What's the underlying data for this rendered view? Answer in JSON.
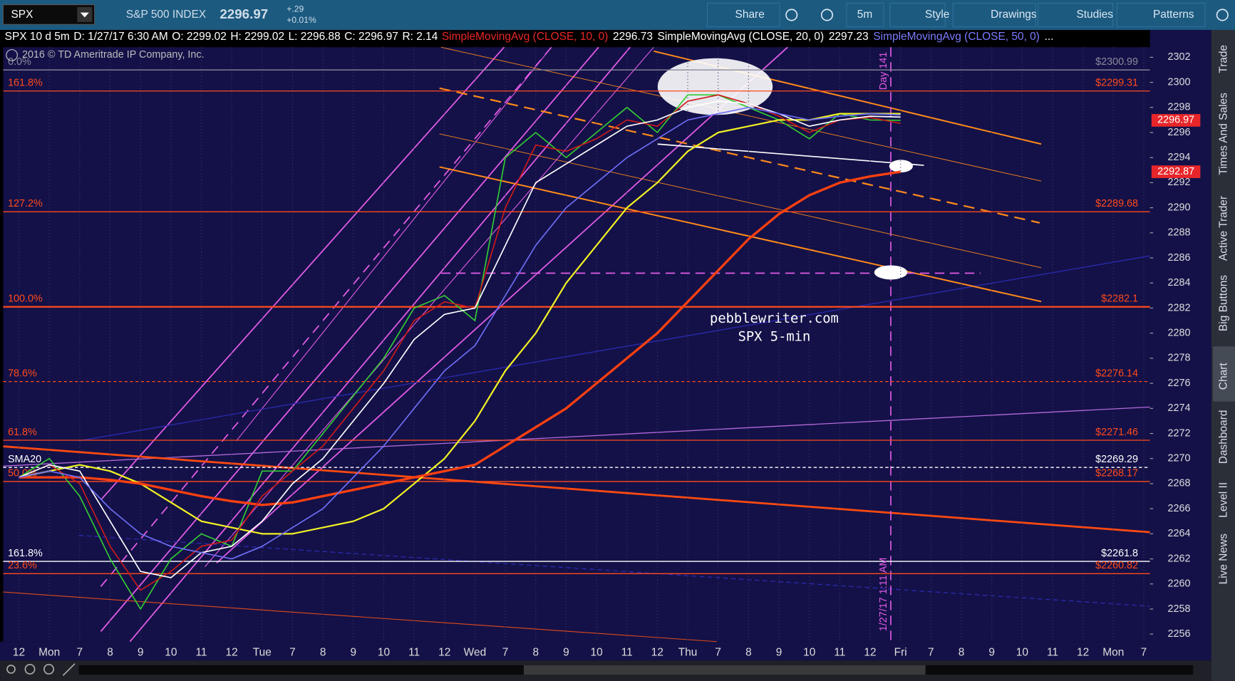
{
  "toolbar": {
    "symbol": "SPX",
    "name": "S&P 500 INDEX",
    "price": "2296.97",
    "change": "+.29",
    "change_pct": "+0.01%",
    "buttons": [
      "Share",
      "5m",
      "Style",
      "Drawings",
      "Studies",
      "Patterns"
    ]
  },
  "status": {
    "chart": "SPX 10 d 5m",
    "date": "D: 1/27/17 6:30 AM",
    "open": "O: 2299.02",
    "high": "H: 2299.02",
    "low": "L: 2296.88",
    "close": "C: 2296.97",
    "range": "R: 2.14",
    "studies": [
      {
        "name": "SimpleMovingAvg (CLOSE, 10, 0)",
        "value": "2296.73",
        "color": "#e8262a"
      },
      {
        "name": "SimpleMovingAvg (CLOSE, 20, 0)",
        "value": "2297.23",
        "color": "#ffffff"
      },
      {
        "name": "SimpleMovingAvg (CLOSE, 50, 0)",
        "value": "...",
        "color": "#7b7bff"
      }
    ]
  },
  "sidebar": [
    "Trade",
    "Times And Sales",
    "Active Trader",
    "Big Buttons",
    "Chart",
    "Dashboard",
    "Level II",
    "Live News"
  ],
  "chart_data": {
    "type": "line",
    "copyright": "2016 © TD Ameritrade IP Company, Inc.",
    "annotations": [
      "pebblewriter.com",
      "SPX 5-min",
      "Day 141",
      "1/27/17 1:11 AM"
    ],
    "categories": [
      "12",
      "Mon",
      "7",
      "8",
      "9",
      "10",
      "11",
      "12",
      "Tue",
      "7",
      "8",
      "9",
      "10",
      "11",
      "12",
      "Wed",
      "7",
      "8",
      "9",
      "10",
      "11",
      "12",
      "Thu",
      "7",
      "8",
      "9",
      "10",
      "11",
      "12",
      "Fri",
      "7",
      "8",
      "9",
      "10",
      "11",
      "12",
      "Mon",
      "7"
    ],
    "series": [
      {
        "color": "#33cc33",
        "values": [
          2268.5,
          2270,
          2267,
          2262,
          2258,
          2262,
          2264,
          2263,
          2269,
          2269,
          2272,
          2275,
          2278,
          2282,
          2283,
          2281,
          2294,
          2296,
          2294,
          2296,
          2298,
          2296,
          2299,
          2299,
          2298,
          2297,
          2295.5,
          2297.5,
          2297,
          2296.97,
          null,
          null,
          null,
          null,
          null,
          null,
          null,
          null
        ]
      },
      {
        "color": "#f2f224",
        "values": [
          2268.5,
          2269,
          2269.5,
          2269,
          2268,
          2266.5,
          2265,
          2264.5,
          2264,
          2264,
          2264.5,
          2265,
          2266,
          2268,
          2270,
          2273,
          2277,
          2280,
          2284,
          2287,
          2290,
          2292,
          2294.5,
          2296,
          2296.5,
          2297,
          2297,
          2297.5,
          2297.5,
          2297.5,
          null,
          null,
          null,
          null,
          null,
          null,
          null,
          null
        ]
      },
      {
        "color": "#ff4010",
        "values": [
          2268.5,
          2268.5,
          2268.5,
          2268.3,
          2268,
          2267.5,
          2267,
          2266.6,
          2266.3,
          2266.5,
          2267,
          2267.5,
          2268,
          2268.5,
          2269,
          2269.5,
          2271,
          2272.5,
          2274,
          2276,
          2278,
          2280,
          2282.5,
          2285,
          2287.5,
          2289.5,
          2291,
          2292,
          2292.5,
          2292.87,
          null,
          null,
          null,
          null,
          null,
          null,
          null,
          null
        ]
      },
      {
        "name": "SimpleMovingAvg (CLOSE, 10, 0)",
        "color": "#cc1a1a",
        "values": [
          2268.5,
          2269.5,
          2268,
          2263,
          2259.5,
          2261,
          2263,
          2263.5,
          2267,
          2269,
          2271,
          2274,
          2277,
          2281,
          2282.5,
          2282,
          2290,
          2295,
          2294.5,
          2295.5,
          2297,
          2296.5,
          2298.5,
          2299,
          2298.3,
          2297.3,
          2296,
          2297,
          2297.2,
          2296.73,
          null,
          null,
          null,
          null,
          null,
          null,
          null,
          null
        ]
      },
      {
        "name": "SimpleMovingAvg (CLOSE, 20, 0)",
        "color": "#ffffff",
        "values": [
          2268.5,
          2269.5,
          2269,
          2265,
          2261,
          2260.5,
          2262.5,
          2263,
          2265,
          2268,
          2270,
          2273,
          2276,
          2279.5,
          2281.5,
          2282,
          2287,
          2292,
          2293.5,
          2295,
          2296.5,
          2297,
          2298,
          2298.5,
          2298.3,
          2297.5,
          2296.5,
          2297,
          2297.3,
          2297.23,
          null,
          null,
          null,
          null,
          null,
          null,
          null,
          null
        ]
      },
      {
        "name": "SimpleMovingAvg (CLOSE, 50, 0)",
        "color": "#6e6ef5",
        "values": [
          2268.5,
          2269,
          2268.5,
          2266,
          2264,
          2263,
          2262.5,
          2262,
          2263,
          2264.5,
          2266,
          2268.5,
          2271,
          2274,
          2277,
          2279,
          2283,
          2287,
          2290,
          2292,
          2294,
          2295.5,
          2297,
          2297.5,
          2298,
          2297.5,
          2297,
          2297.3,
          2297.5,
          2297.4,
          null,
          null,
          null,
          null,
          null,
          null,
          null,
          null
        ]
      }
    ],
    "levels": [
      {
        "label": "0.0%",
        "value": 2300.99,
        "value_label": "$2300.99",
        "color": "#8a8a9a"
      },
      {
        "label": "161.8%",
        "value": 2299.31,
        "value_label": "$2299.31",
        "color": "#ff4a1a"
      },
      {
        "label": "127.2%",
        "value": 2289.68,
        "value_label": "$2289.68",
        "color": "#ff4a1a"
      },
      {
        "label": "100.0%",
        "value": 2282.1,
        "value_label": "$2282.1",
        "color": "#ff4a1a"
      },
      {
        "label": "78.6%",
        "value": 2276.14,
        "value_label": "$2276.14",
        "color": "#ff4a1a"
      },
      {
        "label": "61.8%",
        "value": 2271.46,
        "value_label": "$2271.46",
        "color": "#ff4a1a"
      },
      {
        "label": "SMA20",
        "value": 2269.29,
        "value_label": "$2269.29",
        "color": "#ffffff"
      },
      {
        "label": "50.0%",
        "value": 2268.17,
        "value_label": "$2268.17",
        "color": "#ff4a1a"
      },
      {
        "label": "161.8%",
        "value": 2261.8,
        "value_label": "$2261.8",
        "color": "#ffffff"
      },
      {
        "label": "23.6%",
        "value": 2260.82,
        "value_label": "$2260.82",
        "color": "#ff4a1a"
      }
    ],
    "price_tags": [
      {
        "value": 2296.97,
        "color": "#e8262a"
      },
      {
        "value": 2292.87,
        "color": "#e8262a"
      }
    ],
    "ylim": [
      2255.4,
      2302.8
    ],
    "yticks": [
      2256,
      2258,
      2260,
      2262,
      2264,
      2266,
      2268,
      2270,
      2272,
      2274,
      2276,
      2278,
      2280,
      2282,
      2284,
      2286,
      2288,
      2290,
      2292,
      2294,
      2296,
      2298,
      2300,
      2302
    ],
    "grid": true
  }
}
